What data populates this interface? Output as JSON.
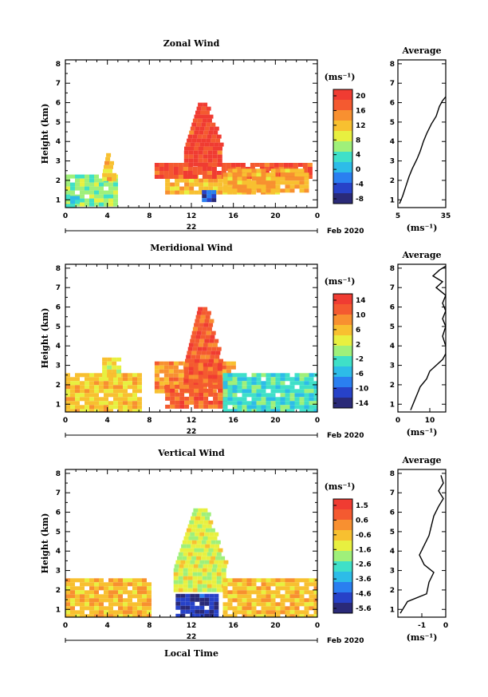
{
  "figure": {
    "date_label": "Feb 2020",
    "day_label": "22",
    "bottom_xlabel": "Local Time",
    "avg_title": "Average",
    "unit_label": "(ms⁻¹)",
    "ylabel": "Height (km)"
  },
  "chart_data": [
    {
      "type": "heatmap",
      "title": "Zonal Wind",
      "x_ticks": [
        "0",
        "4",
        "8",
        "12",
        "16",
        "20",
        "0"
      ],
      "xlim": [
        0,
        24
      ],
      "y_ticks": [
        "1",
        "2",
        "3",
        "4",
        "5",
        "6",
        "7",
        "8"
      ],
      "ylim": [
        0.6,
        8.2
      ],
      "colorbar": {
        "label": "(ms⁻¹)",
        "ticks": [
          "20",
          "16",
          "12",
          "8",
          "4",
          "0",
          "-4",
          "-8"
        ],
        "range": [
          -10,
          22
        ]
      },
      "average": {
        "title": "Average",
        "x_ticks": [
          "5",
          "35"
        ],
        "xlim": [
          5,
          35
        ],
        "xlabel": "(ms⁻¹)",
        "profile": [
          [
            6,
            0.8
          ],
          [
            8,
            1.2
          ],
          [
            10,
            1.7
          ],
          [
            12,
            2.2
          ],
          [
            14,
            2.6
          ],
          [
            17,
            3.1
          ],
          [
            19,
            3.5
          ],
          [
            21,
            4.0
          ],
          [
            23,
            4.4
          ],
          [
            26,
            4.9
          ],
          [
            29,
            5.3
          ],
          [
            31,
            5.8
          ],
          [
            33,
            6.1
          ],
          [
            35,
            6.3
          ]
        ]
      },
      "regions": [
        {
          "label": "west-small-echoes",
          "x0": 0.0,
          "x1": 5.0,
          "y0": 0.8,
          "y1": 2.3,
          "value": 6
        },
        {
          "label": "west-tower",
          "x0": 3.2,
          "x1": 4.2,
          "y0": 2.0,
          "y1": 3.4,
          "value": 12
        },
        {
          "label": "west-low-cold",
          "x0": 0.0,
          "x1": 1.0,
          "y0": 0.7,
          "y1": 1.2,
          "value": 2
        },
        {
          "label": "central-low-layer",
          "x0": 9.5,
          "x1": 20.0,
          "y0": 1.3,
          "y1": 2.3,
          "value": 13
        },
        {
          "label": "central-mid-layer",
          "x0": 8.5,
          "x1": 23.5,
          "y0": 2.1,
          "y1": 2.9,
          "value": 20
        },
        {
          "label": "convective-tower",
          "x0": 11.0,
          "x1": 14.5,
          "y0": 2.8,
          "y1": 6.0,
          "value": 21
        },
        {
          "label": "east-band",
          "x0": 15.0,
          "x1": 23.0,
          "y0": 1.5,
          "y1": 2.6,
          "value": 14
        },
        {
          "label": "cold-core",
          "x0": 13.0,
          "x1": 14.0,
          "y0": 1.0,
          "y1": 1.5,
          "value": -6
        }
      ]
    },
    {
      "type": "heatmap",
      "title": "Meridional Wind",
      "x_ticks": [
        "0",
        "4",
        "8",
        "12",
        "16",
        "20",
        "0"
      ],
      "xlim": [
        0,
        24
      ],
      "y_ticks": [
        "1",
        "2",
        "3",
        "4",
        "5",
        "6",
        "7",
        "8"
      ],
      "ylim": [
        0.6,
        8.2
      ],
      "colorbar": {
        "label": "(ms⁻¹)",
        "ticks": [
          "14",
          "10",
          "6",
          "2",
          "-2",
          "-6",
          "-10",
          "-14"
        ],
        "range": [
          -16,
          16
        ]
      },
      "average": {
        "title": "Average",
        "x_ticks": [
          "0",
          "10"
        ],
        "xlim": [
          0,
          15
        ],
        "xlabel": "(ms⁻¹)",
        "profile": [
          [
            4,
            0.7
          ],
          [
            5,
            1.1
          ],
          [
            6,
            1.5
          ],
          [
            7,
            1.9
          ],
          [
            9,
            2.3
          ],
          [
            10,
            2.7
          ],
          [
            12,
            3.0
          ],
          [
            14,
            3.3
          ],
          [
            15,
            3.6
          ],
          [
            15,
            4.0
          ],
          [
            14,
            4.5
          ],
          [
            15,
            5.0
          ],
          [
            14,
            5.4
          ],
          [
            15,
            5.8
          ],
          [
            14,
            6.2
          ],
          [
            15,
            6.6
          ],
          [
            12,
            7.0
          ],
          [
            14,
            7.3
          ],
          [
            11,
            7.6
          ],
          [
            13,
            7.9
          ],
          [
            15,
            8.1
          ]
        ]
      },
      "regions": [
        {
          "label": "west-band",
          "x0": 0.0,
          "x1": 7.0,
          "y0": 0.7,
          "y1": 2.6,
          "value": 6
        },
        {
          "label": "west-patch",
          "x0": 3.5,
          "x1": 5.0,
          "y0": 2.4,
          "y1": 3.4,
          "value": 4
        },
        {
          "label": "central-mid",
          "x0": 8.5,
          "x1": 16.0,
          "y0": 1.6,
          "y1": 3.2,
          "value": 9
        },
        {
          "label": "convective-tower",
          "x0": 11.0,
          "x1": 14.5,
          "y0": 2.0,
          "y1": 6.0,
          "value": 13
        },
        {
          "label": "central-low",
          "x0": 9.5,
          "x1": 15.0,
          "y0": 0.8,
          "y1": 2.0,
          "value": 13
        },
        {
          "label": "east-negative",
          "x0": 15.0,
          "x1": 24.0,
          "y0": 0.7,
          "y1": 2.6,
          "value": -3
        }
      ]
    },
    {
      "type": "heatmap",
      "title": "Vertical Wind",
      "x_ticks": [
        "0",
        "4",
        "8",
        "12",
        "16",
        "20",
        "0"
      ],
      "xlim": [
        0,
        24
      ],
      "y_ticks": [
        "1",
        "2",
        "3",
        "4",
        "5",
        "6",
        "7",
        "8"
      ],
      "ylim": [
        0.6,
        8.2
      ],
      "colorbar": {
        "label": "(ms⁻¹)",
        "ticks": [
          "1.5",
          "0.6",
          "-0.6",
          "-1.6",
          "-2.6",
          "-3.6",
          "-4.6",
          "-5.6"
        ],
        "range": [
          -6,
          2
        ]
      },
      "average": {
        "title": "Average",
        "x_ticks": [
          "-1",
          "0"
        ],
        "xlim": [
          -2,
          0
        ],
        "xlabel": "(ms⁻¹)",
        "profile": [
          [
            -1.9,
            0.8
          ],
          [
            -1.6,
            1.4
          ],
          [
            -0.8,
            1.8
          ],
          [
            -0.7,
            2.4
          ],
          [
            -0.5,
            2.9
          ],
          [
            -0.9,
            3.3
          ],
          [
            -1.1,
            3.8
          ],
          [
            -0.9,
            4.3
          ],
          [
            -0.7,
            4.8
          ],
          [
            -0.6,
            5.3
          ],
          [
            -0.5,
            5.8
          ],
          [
            -0.3,
            6.3
          ],
          [
            -0.1,
            6.7
          ],
          [
            -0.3,
            7.1
          ],
          [
            -0.1,
            7.5
          ],
          [
            -0.2,
            7.9
          ]
        ]
      },
      "regions": [
        {
          "label": "west-band",
          "x0": 0.0,
          "x1": 8.0,
          "y0": 0.7,
          "y1": 2.6,
          "value": -0.2
        },
        {
          "label": "convective-tower",
          "x0": 10.0,
          "x1": 15.0,
          "y0": 2.0,
          "y1": 6.2,
          "value": -1.4
        },
        {
          "label": "downdraft-core",
          "x0": 10.5,
          "x1": 14.5,
          "y0": 0.7,
          "y1": 1.8,
          "value": -5.5
        },
        {
          "label": "east-band",
          "x0": 15.0,
          "x1": 24.0,
          "y0": 0.7,
          "y1": 2.6,
          "value": -0.3
        }
      ]
    }
  ]
}
